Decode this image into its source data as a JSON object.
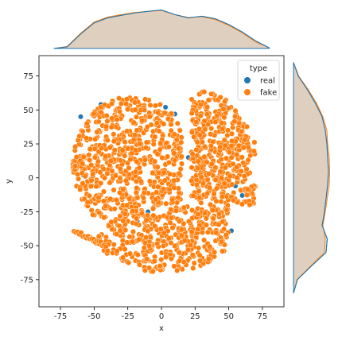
{
  "chart_data": {
    "type": "scatter",
    "title": "",
    "xlabel": "x",
    "ylabel": "y",
    "xlim": [
      -91,
      91
    ],
    "ylim": [
      -95,
      90
    ],
    "xticks": [
      -75,
      -50,
      -25,
      0,
      25,
      50,
      75
    ],
    "yticks": [
      -75,
      -50,
      -25,
      0,
      25,
      50,
      75
    ],
    "grid": false,
    "legend": {
      "title": "type",
      "placement": "top-right",
      "entries": [
        {
          "name": "real",
          "color": "#1f77b4"
        },
        {
          "name": "fake",
          "color": "#ff7f0e"
        }
      ]
    },
    "series": [
      {
        "name": "real",
        "color": "#1f77b4",
        "points": [
          [
            -60,
            45
          ],
          [
            -48,
            47
          ],
          [
            -45,
            54
          ],
          [
            3,
            52
          ],
          [
            -3,
            44
          ],
          [
            10,
            47
          ],
          [
            20,
            15
          ],
          [
            60,
            -13
          ],
          [
            55,
            -6
          ],
          [
            65,
            -11
          ],
          [
            -10,
            -25
          ],
          [
            -18,
            -32
          ],
          [
            52,
            -39
          ],
          [
            -58,
            2
          ],
          [
            48,
            52
          ]
        ]
      },
      {
        "name": "fake",
        "color": "#ff7f0e",
        "regions": [
          {
            "center": [
              -25,
              10
            ],
            "extent": "left cluster, x -68 to 25, y -40 to 62"
          },
          {
            "center": [
              35,
              5
            ],
            "extent": "right arc, x 10 to 70, y -50 to 65"
          },
          {
            "center": [
              5,
              -50
            ],
            "extent": "bottom arc, x -65 to 45, y -70 to -20"
          }
        ]
      }
    ],
    "marginal_x": {
      "type": "kde",
      "x": [
        -80,
        -70,
        -60,
        -50,
        -40,
        -30,
        -20,
        -10,
        0,
        10,
        20,
        30,
        40,
        50,
        60,
        70,
        80
      ],
      "real": [
        0.0,
        0.04,
        0.35,
        0.62,
        0.74,
        0.8,
        0.86,
        0.9,
        0.93,
        0.82,
        0.74,
        0.78,
        0.72,
        0.58,
        0.4,
        0.18,
        0.02
      ],
      "fake": [
        0.0,
        0.05,
        0.37,
        0.64,
        0.76,
        0.82,
        0.87,
        0.9,
        0.92,
        0.82,
        0.75,
        0.77,
        0.7,
        0.56,
        0.38,
        0.16,
        0.02
      ]
    },
    "marginal_y": {
      "type": "kde",
      "y": [
        -85,
        -75,
        -65,
        -55,
        -45,
        -35,
        -25,
        -15,
        -5,
        5,
        15,
        25,
        35,
        45,
        55,
        65,
        75,
        85
      ],
      "real": [
        0.0,
        0.1,
        0.45,
        0.82,
        0.85,
        0.72,
        0.78,
        0.82,
        0.86,
        0.88,
        0.86,
        0.84,
        0.8,
        0.72,
        0.55,
        0.35,
        0.12,
        0.0
      ],
      "fake": [
        0.0,
        0.09,
        0.43,
        0.78,
        0.8,
        0.74,
        0.8,
        0.85,
        0.9,
        0.91,
        0.9,
        0.86,
        0.84,
        0.74,
        0.58,
        0.37,
        0.13,
        0.0
      ]
    }
  }
}
